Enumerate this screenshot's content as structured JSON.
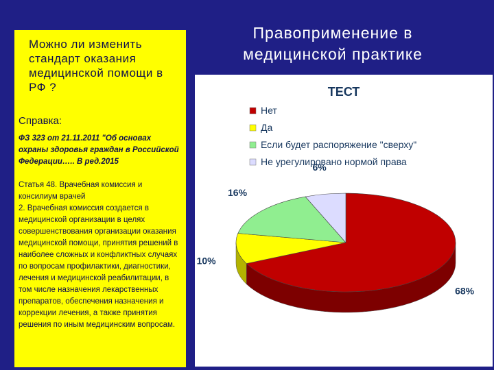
{
  "slide": {
    "title": "Правоприменение в медицинской практике",
    "question": "Можно ли изменить стандарт оказания медицинской помощи в РФ ?",
    "reference_title": "Справка:",
    "law": "ФЗ 323 от 21.11.2011 \"Об основах охраны здоровья граждан в Российской Федерации….. В ред.2015",
    "article": "Статья 48. Врачебная комиссия и консилиум врачей",
    "clause": "2. Врачебная комиссия создается в медицинской организации в целях совершенствования организации оказания медицинской помощи, принятия решений в наиболее сложных и конфликтных случаях по вопросам профилактики, диагностики, лечения и медицинской реабилитации, в том числе назначения лекарственных препаратов, обеспечения назначения и коррекции лечения, а также принятия решения по иным медицинским вопросам."
  },
  "colors": {
    "background": "#1f1f86",
    "panel": "#ffff00",
    "text": "#10104a"
  },
  "chart_data": {
    "type": "pie",
    "three_d": true,
    "title": "ТЕСТ",
    "legend_position": "top",
    "categories": [
      "Нет",
      "Да",
      "Если будет распоряжение \"сверху\"",
      "Не урегулировано нормой права"
    ],
    "values": [
      68,
      10,
      16,
      6
    ],
    "value_labels": [
      "68%",
      "10%",
      "16%",
      "6%"
    ],
    "colors": [
      "#c00000",
      "#ffff00",
      "#90ee90",
      "#dcdcff"
    ],
    "side_colors": [
      "#7d0000",
      "#b3b300",
      "#5fae5f",
      "#9a9ab8"
    ]
  }
}
